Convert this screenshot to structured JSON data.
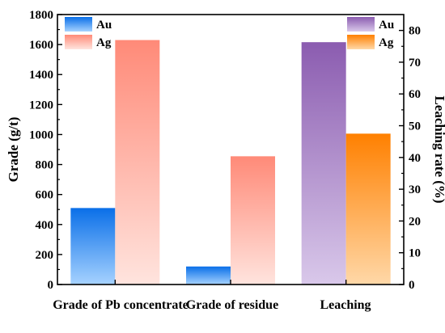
{
  "chart_data": {
    "type": "bar",
    "categories": [
      "Grade of Pb concentrate",
      "Grade of residue",
      "Leaching"
    ],
    "left_axis": {
      "label": "Grade (g/t)",
      "ylim": [
        0,
        1800
      ],
      "ticks": [
        0,
        200,
        400,
        600,
        800,
        1000,
        1200,
        1400,
        1600,
        1800
      ]
    },
    "right_axis": {
      "label": "Leaching rate (%)",
      "ylim": [
        0,
        85
      ],
      "ticks": [
        0,
        10,
        20,
        30,
        40,
        50,
        60,
        70,
        80
      ]
    },
    "series": [
      {
        "name": "Au",
        "axis": "left",
        "values": [
          510,
          120,
          null
        ],
        "color_top": "#0a6fe8",
        "color_bottom": "#a6d2ff"
      },
      {
        "name": "Ag",
        "axis": "left",
        "values": [
          1630,
          855,
          null
        ],
        "color_top": "#ff8a78",
        "color_bottom": "#ffe4de"
      },
      {
        "name": "Au",
        "axis": "right",
        "values": [
          null,
          null,
          76.3
        ],
        "color_top": "#8b5cb0",
        "color_bottom": "#d9c8ea"
      },
      {
        "name": "Ag",
        "axis": "right",
        "values": [
          null,
          null,
          47.5
        ],
        "color_top": "#ff8000",
        "color_bottom": "#ffd8a8"
      }
    ],
    "legend_left": [
      "Au",
      "Ag"
    ],
    "legend_right": [
      "Au",
      "Ag"
    ],
    "grid": false
  }
}
